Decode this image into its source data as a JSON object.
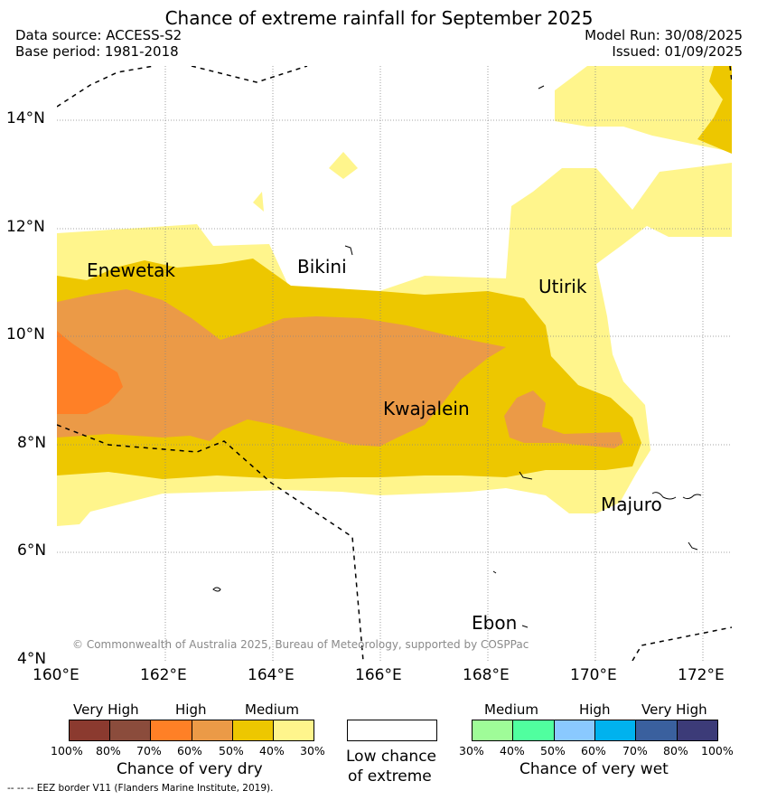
{
  "title": "Chance of extreme rainfall for September 2025",
  "header": {
    "data_source": "Data source: ACCESS-S2",
    "base_period": "Base period: 1981-2018",
    "model_run": "Model Run: 30/08/2025",
    "issued": "Issued: 01/09/2025"
  },
  "axes": {
    "lat_labels": [
      "14°N",
      "12°N",
      "10°N",
      "8°N",
      "6°N",
      "4°N"
    ],
    "lon_labels": [
      "160°E",
      "162°E",
      "164°E",
      "166°E",
      "168°E",
      "170°E",
      "172°E"
    ]
  },
  "places": {
    "enewetak": "Enewetak",
    "bikini": "Bikini",
    "utirik": "Utirik",
    "kwajalein": "Kwajalein",
    "majuro": "Majuro",
    "ebon": "Ebon"
  },
  "copyright": "© Commonwealth of Australia 2025, Bureau of Meteorology, supported by COSPPac",
  "legend": {
    "dry": {
      "levels": [
        "Very High",
        "High",
        "Medium"
      ],
      "ticks": [
        "100%",
        "80%",
        "70%",
        "60%",
        "50%",
        "40%",
        "30%"
      ],
      "colors": [
        "#8b3a2f",
        "#8b4c3c",
        "#ff8026",
        "#eb9a47",
        "#edc700",
        "#fff58c"
      ],
      "caption": "Chance of very dry"
    },
    "neutral": {
      "line1": "Low chance",
      "line2": "of extreme"
    },
    "wet": {
      "levels": [
        "Medium",
        "High",
        "Very High"
      ],
      "ticks": [
        "30%",
        "40%",
        "50%",
        "60%",
        "70%",
        "80%",
        "100%"
      ],
      "colors": [
        "#9ffc98",
        "#50ff9f",
        "#8ac9ff",
        "#00b2ee",
        "#3a609e",
        "#3c3b78"
      ],
      "caption": "Chance of very wet"
    }
  },
  "footnote": "--  --  -- EEZ border V11 (Flanders Marine Institute, 2019)."
}
